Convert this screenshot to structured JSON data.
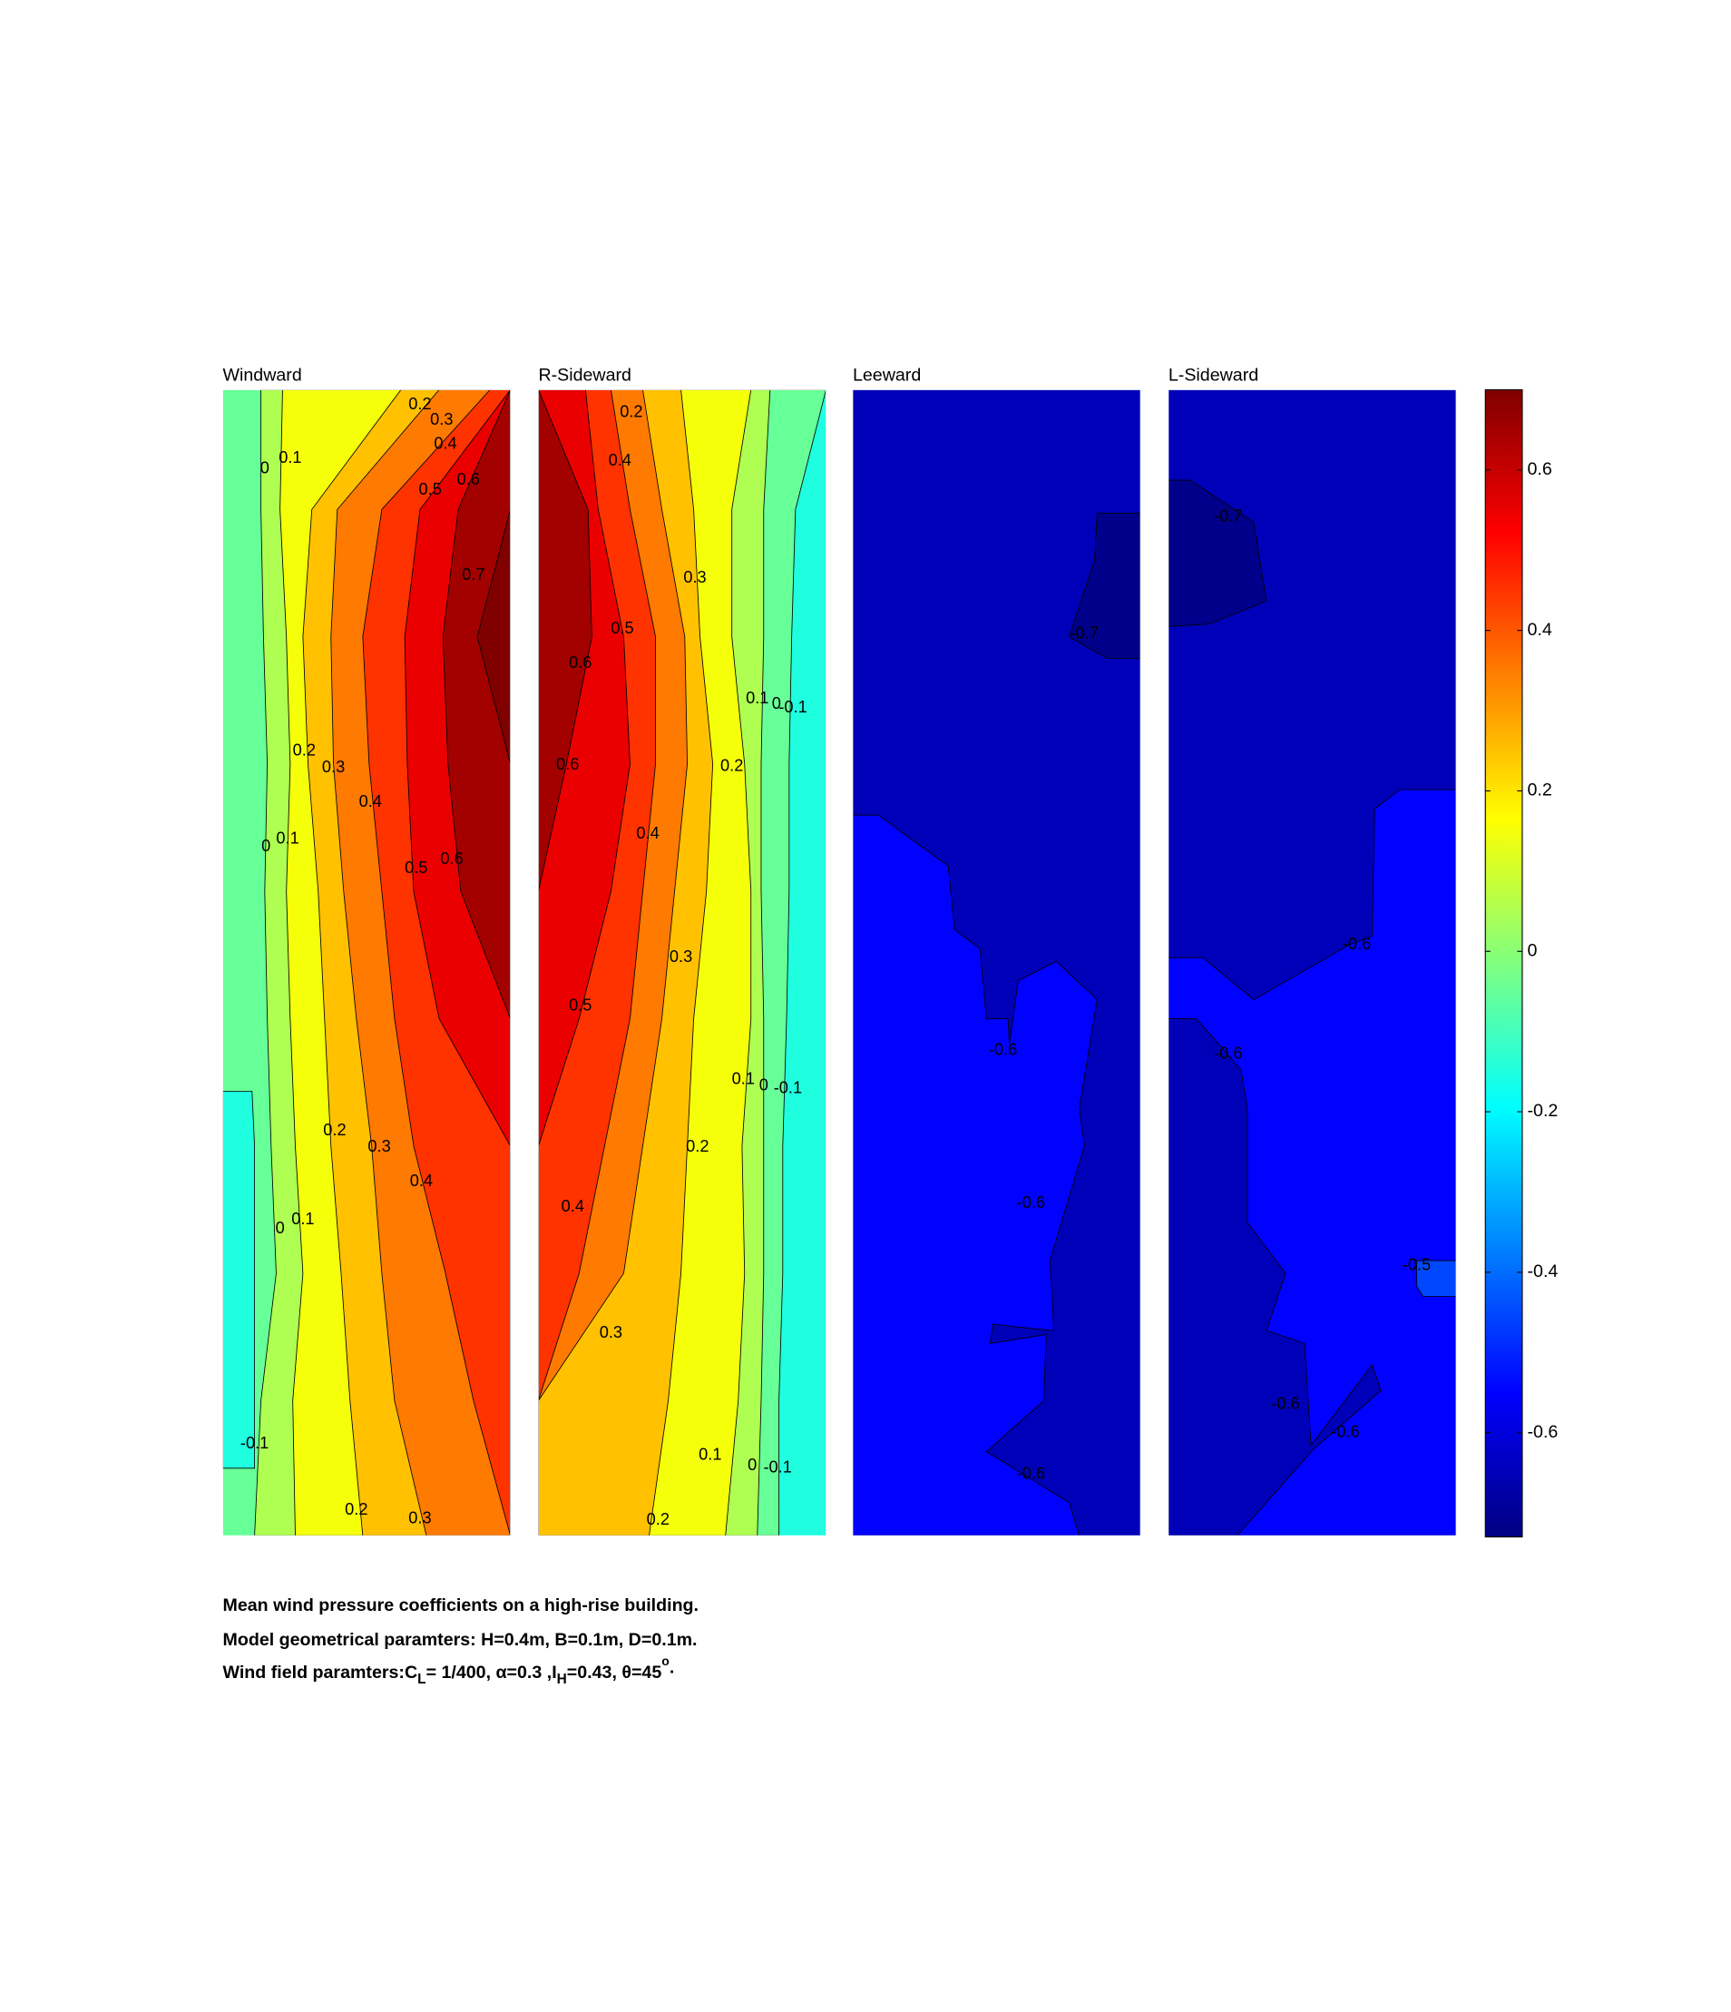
{
  "chart_data": [
    {
      "type": "contour",
      "title": "Windward",
      "contour_labels": [
        0.2,
        0.3,
        0.4,
        0,
        0.1,
        0.5,
        0.6,
        0.7,
        0.2,
        0.3,
        0.4,
        0,
        0.1,
        0.5,
        0.6,
        0.2,
        0.3,
        0.4,
        0,
        0.1,
        -0.1,
        0.2,
        0.3
      ]
    },
    {
      "type": "contour",
      "title": "R-Sideward",
      "contour_labels": [
        0.2,
        0.4,
        0.3,
        0.5,
        0.6,
        0.1,
        0,
        -0.1,
        0.2,
        0.6,
        0.4,
        0.3,
        0.5,
        0.1,
        0,
        -0.1,
        0.2,
        0.4,
        0.3,
        0.1,
        0,
        -0.1,
        0.2
      ]
    },
    {
      "type": "contour",
      "title": "Leeward",
      "contour_labels": [
        -0.7,
        -0.6,
        -0.6,
        -0.6
      ]
    },
    {
      "type": "contour",
      "title": "L-Sideward",
      "contour_labels": [
        -0.7,
        -0.6,
        -0.6,
        -0.5,
        -0.6,
        -0.6
      ]
    }
  ],
  "colorbar": {
    "ylim": [
      -0.73,
      0.7
    ],
    "yticks": [
      0.6,
      0.4,
      0.2,
      0,
      -0.2,
      -0.4,
      -0.6
    ],
    "levels": [
      -0.7,
      -0.6,
      -0.5,
      -0.4,
      -0.3,
      -0.2,
      -0.1,
      0,
      0.1,
      0.2,
      0.3,
      0.4,
      0.5,
      0.6,
      0.7
    ]
  },
  "caption": {
    "line1": "Mean wind pressure coefficients on a high-rise building.",
    "line2": "Model geometrical paramters: H=0.4m, B=0.1m, D=0.1m.",
    "line3": [
      "Wind field paramters:C",
      "L",
      "= 1/400, α=0.3 ,I",
      "H",
      "=0.43, θ=45",
      "o",
      "."
    ]
  }
}
